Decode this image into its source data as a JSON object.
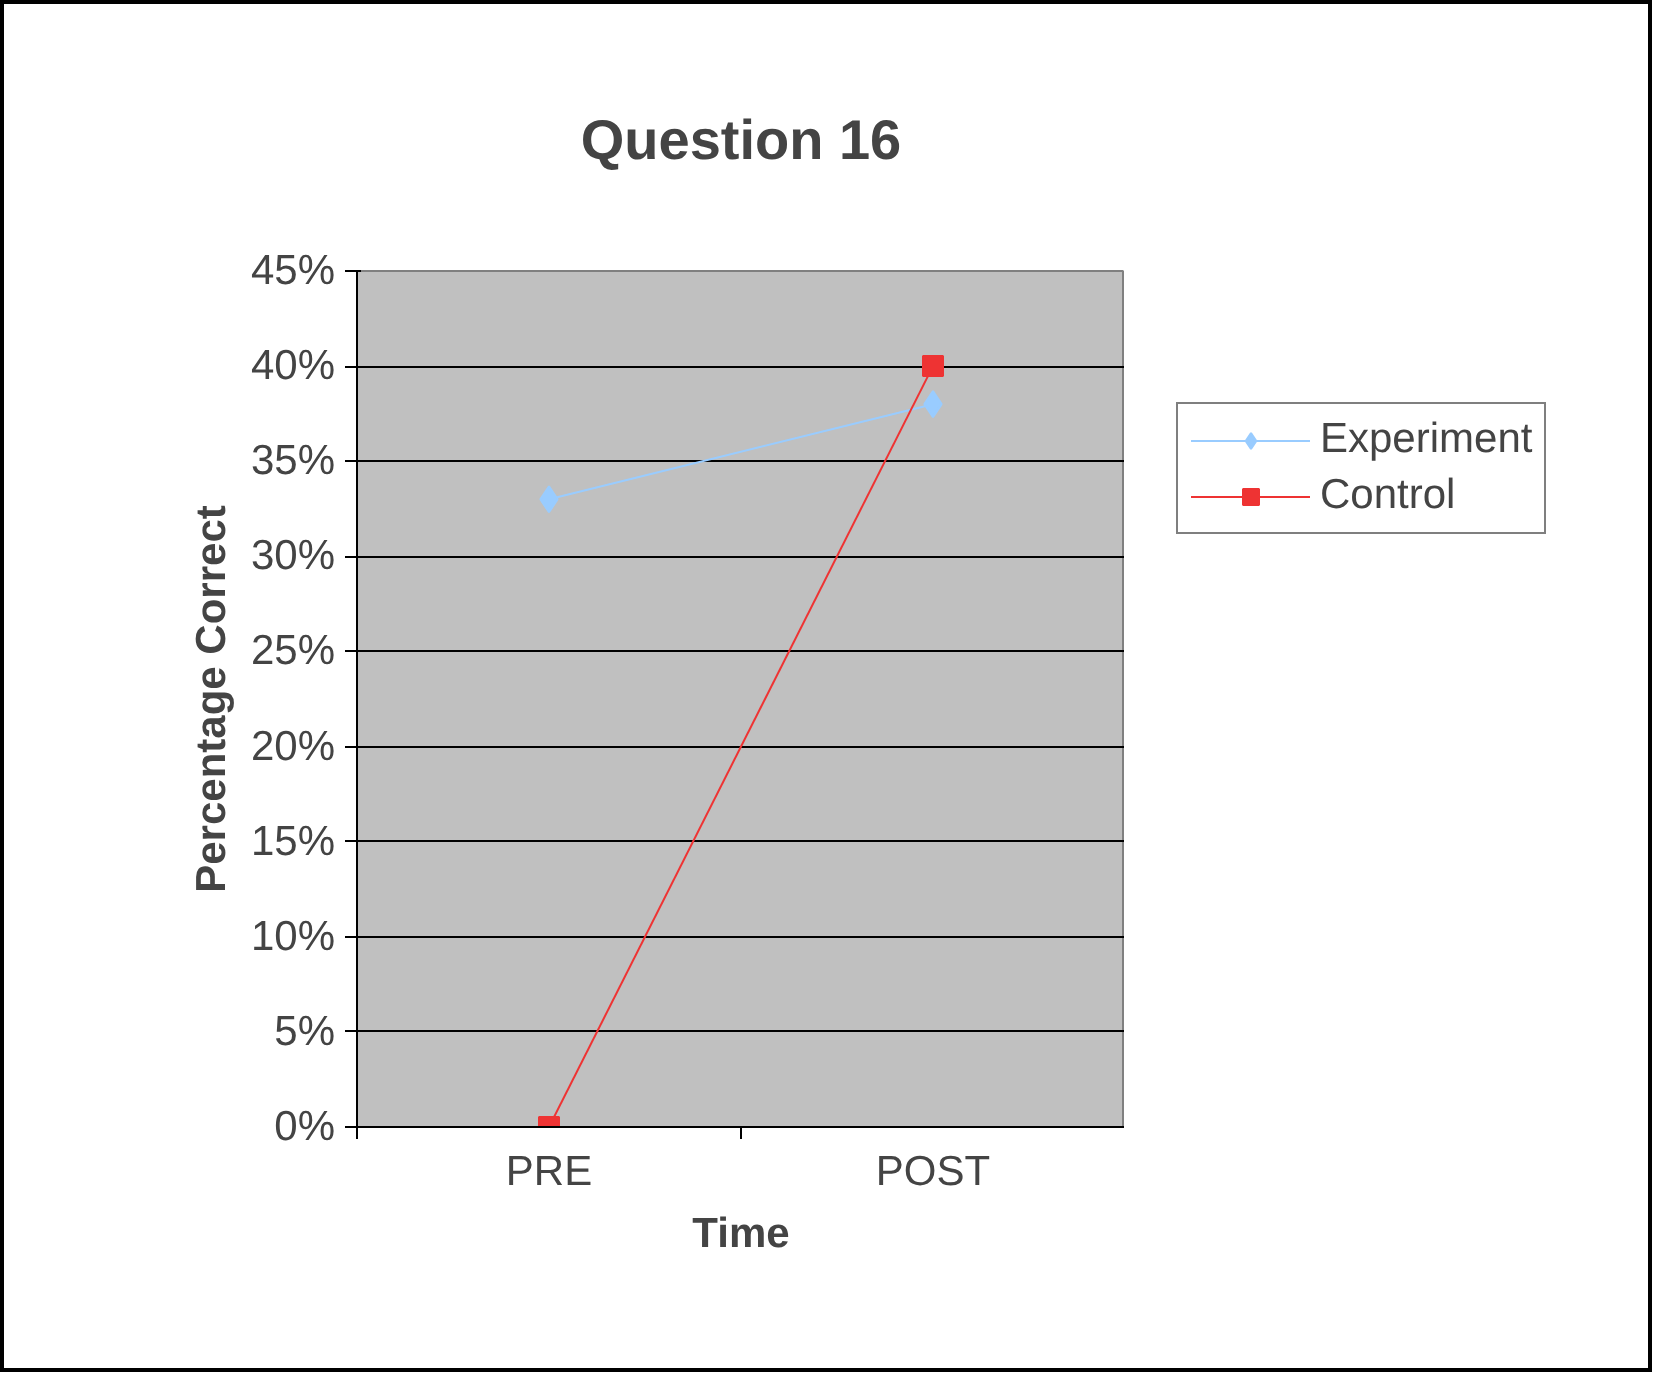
{
  "chart_data": {
    "type": "line",
    "title": "Question 16",
    "xlabel": "Time",
    "ylabel": "Percentage Correct",
    "categories": [
      "PRE",
      "POST"
    ],
    "series": [
      {
        "name": "Experiment",
        "color": "#99ccff",
        "values": [
          33,
          38
        ],
        "marker": "diamond"
      },
      {
        "name": "Control",
        "color": "#ee3333",
        "values": [
          0,
          40
        ],
        "marker": "square"
      }
    ],
    "ylim": [
      0,
      45
    ],
    "yticks": [
      {
        "value": 0,
        "label": "0%"
      },
      {
        "value": 5,
        "label": "5%"
      },
      {
        "value": 10,
        "label": "10%"
      },
      {
        "value": 15,
        "label": "15%"
      },
      {
        "value": 20,
        "label": "20%"
      },
      {
        "value": 25,
        "label": "25%"
      },
      {
        "value": 30,
        "label": "30%"
      },
      {
        "value": 35,
        "label": "35%"
      },
      {
        "value": 40,
        "label": "40%"
      },
      {
        "value": 45,
        "label": "45%"
      }
    ],
    "grid": "y",
    "legend": "right",
    "line_style": "solid"
  }
}
